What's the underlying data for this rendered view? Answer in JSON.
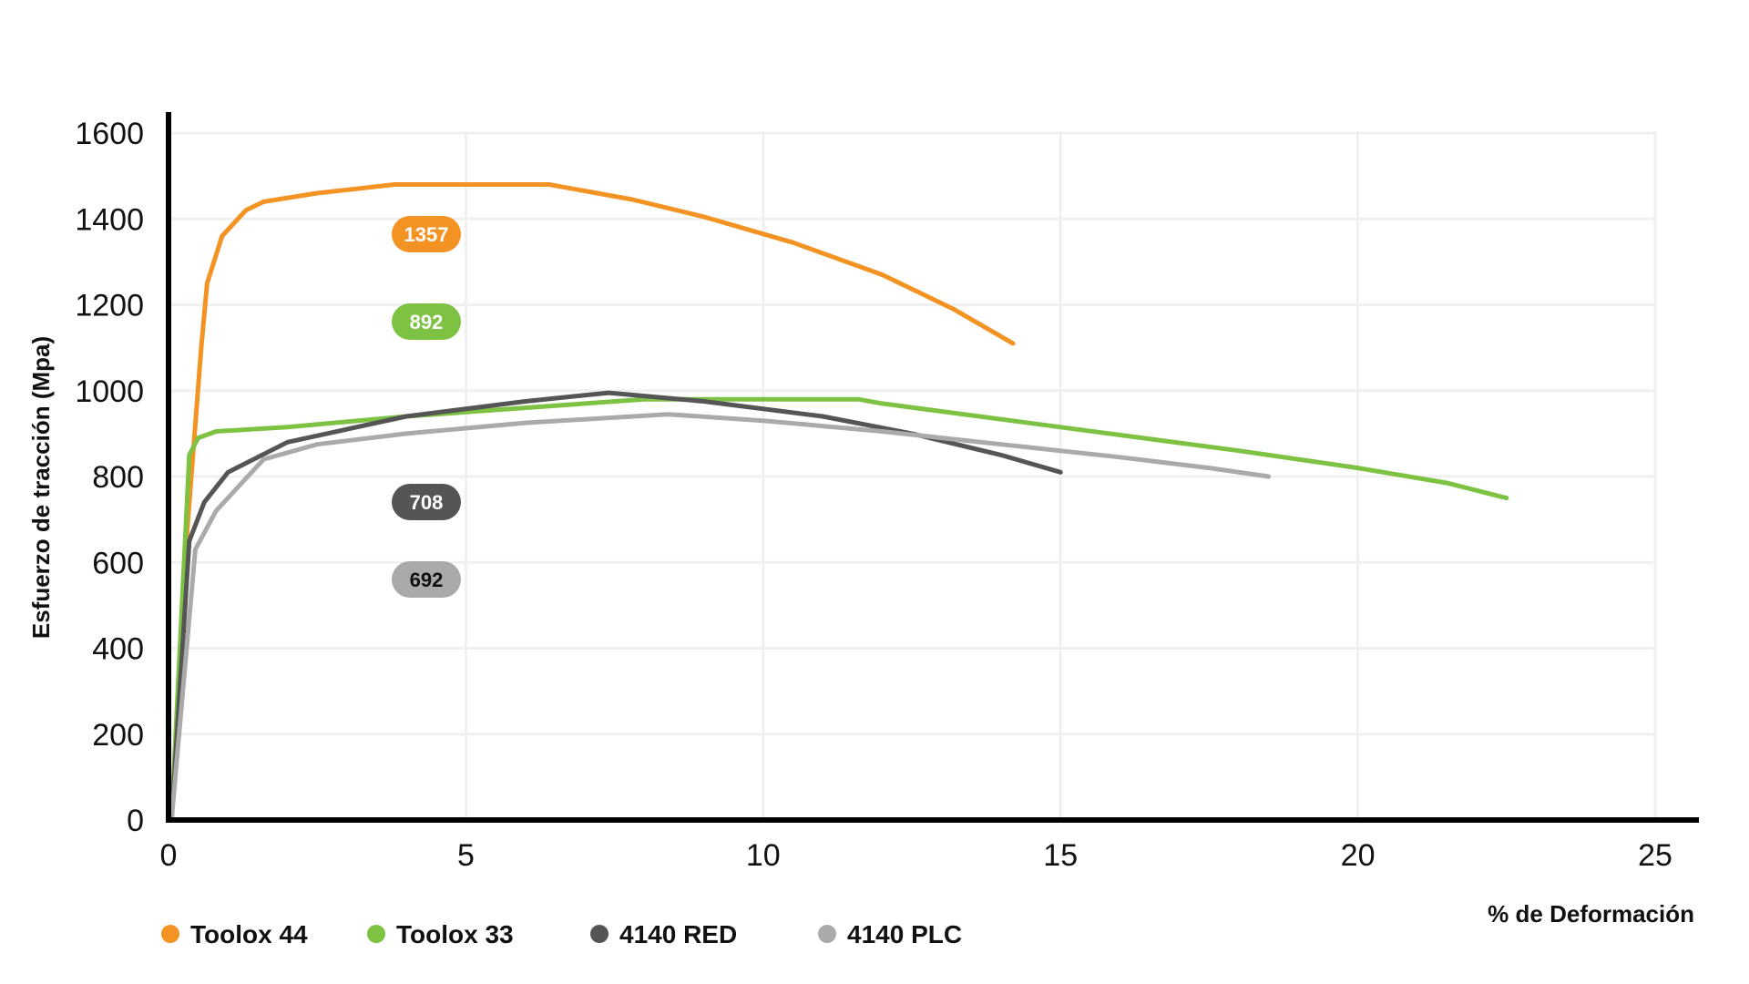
{
  "chart_data": {
    "type": "line",
    "title": "",
    "xlabel": "% de Deformación",
    "ylabel": "Esfuerzo de tracción (Mpa)",
    "xlim": [
      0,
      25
    ],
    "ylim": [
      0,
      1600
    ],
    "xticks": [
      0,
      5,
      10,
      15,
      20,
      25
    ],
    "yticks": [
      0,
      200,
      400,
      600,
      800,
      1000,
      1200,
      1400,
      1600
    ],
    "grid": true,
    "legend_position": "bottom-left",
    "series": [
      {
        "name": "Toolox 44",
        "color": "#f39323",
        "points": [
          [
            0.05,
            0
          ],
          [
            0.3,
            650
          ],
          [
            0.55,
            1100
          ],
          [
            0.65,
            1250
          ],
          [
            0.9,
            1360
          ],
          [
            1.3,
            1420
          ],
          [
            1.6,
            1440
          ],
          [
            2.5,
            1460
          ],
          [
            3.8,
            1480
          ],
          [
            6.4,
            1480
          ],
          [
            7.8,
            1445
          ],
          [
            9,
            1405
          ],
          [
            10.5,
            1345
          ],
          [
            12,
            1270
          ],
          [
            13.2,
            1190
          ],
          [
            14.2,
            1110
          ]
        ],
        "badge": "1357"
      },
      {
        "name": "Toolox 33",
        "color": "#7dc242",
        "points": [
          [
            0.05,
            0
          ],
          [
            0.35,
            850
          ],
          [
            0.5,
            890
          ],
          [
            0.8,
            905
          ],
          [
            2,
            915
          ],
          [
            4,
            940
          ],
          [
            8,
            980
          ],
          [
            11.6,
            980
          ],
          [
            12,
            970
          ],
          [
            15,
            915
          ],
          [
            18,
            860
          ],
          [
            20,
            820
          ],
          [
            21.5,
            785
          ],
          [
            22.5,
            750
          ]
        ],
        "badge": "892"
      },
      {
        "name": "4140 RED",
        "color": "#555555",
        "points": [
          [
            0.05,
            0
          ],
          [
            0.35,
            650
          ],
          [
            0.6,
            740
          ],
          [
            1,
            810
          ],
          [
            2,
            880
          ],
          [
            4,
            940
          ],
          [
            6,
            975
          ],
          [
            7.4,
            995
          ],
          [
            9,
            975
          ],
          [
            11,
            940
          ],
          [
            12.5,
            900
          ],
          [
            14,
            850
          ],
          [
            15,
            810
          ]
        ],
        "badge": "708"
      },
      {
        "name": "4140 PLC",
        "color": "#aaaaaa",
        "points": [
          [
            0.05,
            0
          ],
          [
            0.45,
            630
          ],
          [
            0.8,
            720
          ],
          [
            1.6,
            840
          ],
          [
            2.5,
            875
          ],
          [
            4,
            900
          ],
          [
            6,
            925
          ],
          [
            8.4,
            945
          ],
          [
            10,
            930
          ],
          [
            12,
            905
          ],
          [
            14,
            875
          ],
          [
            16,
            845
          ],
          [
            17.5,
            820
          ],
          [
            18.5,
            800
          ]
        ],
        "badge": "692"
      }
    ]
  }
}
